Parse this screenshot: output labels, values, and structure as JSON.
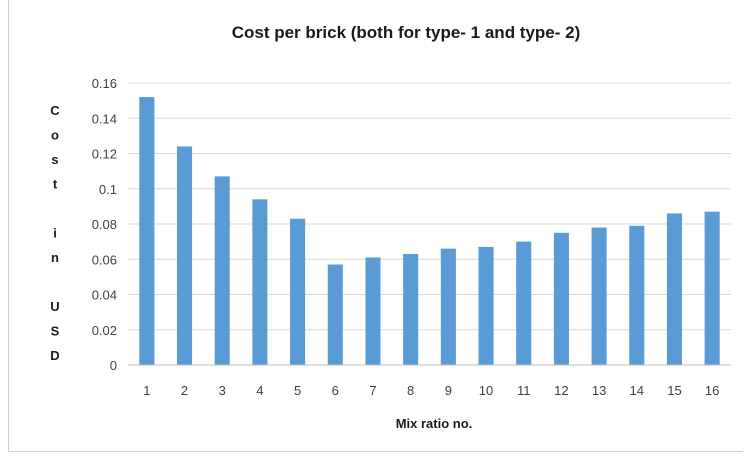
{
  "chart_data": {
    "type": "bar",
    "title": "Cost per brick (both for type- 1 and type- 2)",
    "xlabel": "Mix ratio  no.",
    "ylabel": "Cost in USD",
    "ylabel_lines": [
      "C",
      "o",
      "s",
      "t",
      "",
      "i",
      "n",
      "",
      "U",
      "S",
      "D"
    ],
    "categories": [
      "1",
      "2",
      "3",
      "4",
      "5",
      "6",
      "7",
      "8",
      "9",
      "10",
      "11",
      "12",
      "13",
      "14",
      "15",
      "16"
    ],
    "values": [
      0.152,
      0.124,
      0.107,
      0.094,
      0.083,
      0.057,
      0.061,
      0.063,
      0.066,
      0.067,
      0.07,
      0.075,
      0.078,
      0.079,
      0.086,
      0.087
    ],
    "ylim": [
      0,
      0.16
    ],
    "yticks": [
      0,
      0.02,
      0.04,
      0.06,
      0.08,
      0.1,
      0.12,
      0.14,
      0.16
    ],
    "ytick_labels": [
      "0",
      "0.02",
      "0.04",
      "0.06",
      "0.08",
      "0.1",
      "0.12",
      "0.14",
      "0.16"
    ],
    "grid": true,
    "legend": "none",
    "bar_color": "#5b9bd5",
    "grid_color": "#d9d9d9"
  }
}
